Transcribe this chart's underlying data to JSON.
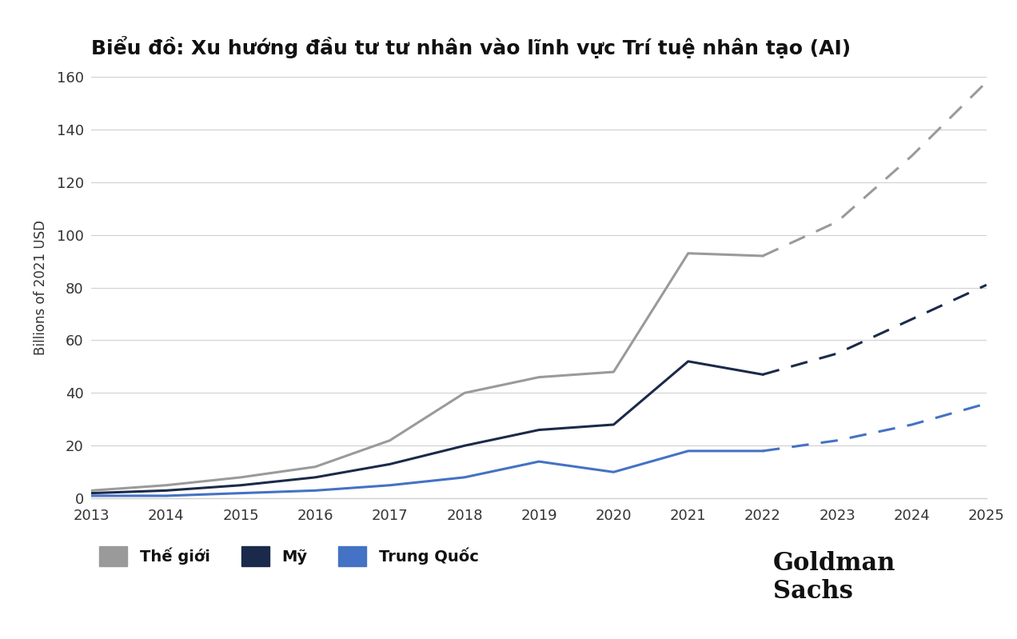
{
  "title": "Biểu đồ: Xu hướng đầu tư tư nhân vào lĩnh vực Trí tuệ nhân tạo (AI)",
  "ylabel": "Billions of 2021 USD",
  "background_color": "#ffffff",
  "ylim": [
    0,
    160
  ],
  "yticks": [
    0,
    20,
    40,
    60,
    80,
    100,
    120,
    140,
    160
  ],
  "xlim": [
    2013,
    2025
  ],
  "xticks": [
    2013,
    2014,
    2015,
    2016,
    2017,
    2018,
    2019,
    2020,
    2021,
    2022,
    2023,
    2024,
    2025
  ],
  "years_solid": [
    2013,
    2014,
    2015,
    2016,
    2017,
    2018,
    2019,
    2020,
    2021,
    2022
  ],
  "years_dashed": [
    2022,
    2023,
    2024,
    2025
  ],
  "world_solid": [
    3,
    5,
    8,
    12,
    22,
    40,
    46,
    48,
    93,
    92
  ],
  "world_dashed": [
    92,
    105,
    130,
    158
  ],
  "us_solid": [
    2,
    3,
    5,
    8,
    13,
    20,
    26,
    28,
    52,
    47
  ],
  "us_dashed": [
    47,
    55,
    68,
    81
  ],
  "china_solid": [
    1,
    1,
    2,
    3,
    5,
    8,
    14,
    10,
    18,
    18
  ],
  "china_dashed": [
    18,
    22,
    28,
    36
  ],
  "world_color": "#9a9a9a",
  "us_color": "#1b2a4a",
  "china_color": "#4472c4",
  "legend_labels": [
    "Thế giới",
    "Mỹ",
    "Trung Quốc"
  ],
  "line_width": 2.2,
  "grid_color": "#d0d0d0",
  "tick_color": "#333333",
  "title_fontsize": 18,
  "tick_fontsize": 13,
  "ylabel_fontsize": 12
}
